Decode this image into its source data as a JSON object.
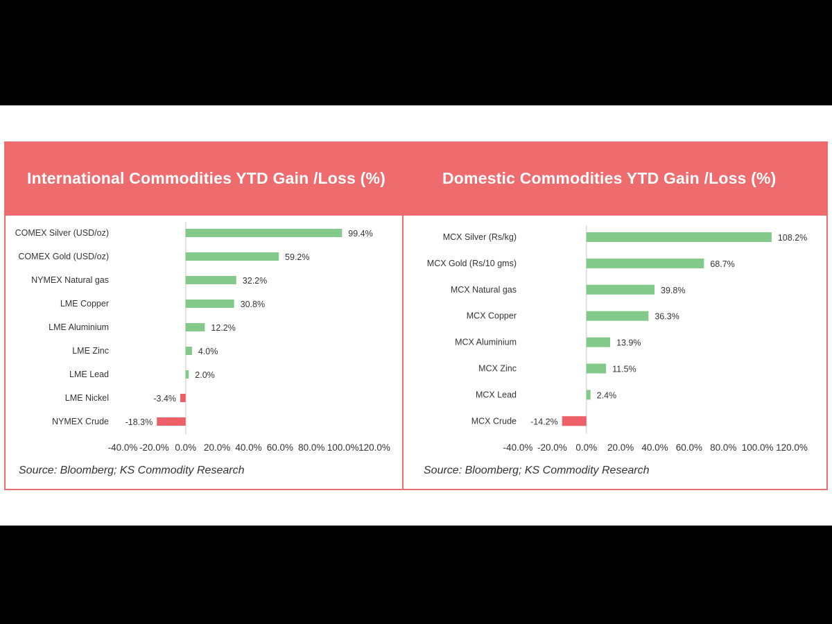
{
  "colors": {
    "header": "#ee6b6e",
    "positive": "#82c98a",
    "negative": "#ee6068"
  },
  "chart_data": [
    {
      "type": "bar",
      "orientation": "horizontal",
      "title": "International Commodities YTD Gain /Loss (%)",
      "categories": [
        "COMEX Silver (USD/oz)",
        "COMEX Gold (USD/oz)",
        "NYMEX Natural gas",
        "LME Copper",
        "LME Aluminium",
        "LME Zinc",
        "LME Lead",
        "LME Nickel",
        "NYMEX Crude"
      ],
      "values": [
        99.4,
        59.2,
        32.2,
        30.8,
        12.2,
        4.0,
        2.0,
        -3.4,
        -18.3
      ],
      "data_labels": [
        "99.4%",
        "59.2%",
        "32.2%",
        "30.8%",
        "12.2%",
        "4.0%",
        "2.0%",
        "-3.4%",
        "-18.3%"
      ],
      "xlim": [
        -40,
        120
      ],
      "xticks": [
        "-40.0%",
        "-20.0%",
        "0.0%",
        "20.0%",
        "40.0%",
        "60.0%",
        "80.0%",
        "100.0%",
        "120.0%"
      ],
      "grid": false,
      "source": "Source: Bloomberg; KS Commodity Research"
    },
    {
      "type": "bar",
      "orientation": "horizontal",
      "title": "Domestic Commodities YTD Gain /Loss (%)",
      "categories": [
        "MCX Silver (Rs/kg)",
        "MCX Gold (Rs/10 gms)",
        "MCX Natural gas",
        "MCX Copper",
        "MCX Aluminium",
        "MCX Zinc",
        "MCX Lead",
        "MCX Crude"
      ],
      "values": [
        108.2,
        68.7,
        39.8,
        36.3,
        13.9,
        11.5,
        2.4,
        -14.2
      ],
      "data_labels": [
        "108.2%",
        "68.7%",
        "39.8%",
        "36.3%",
        "13.9%",
        "11.5%",
        "2.4%",
        "-14.2%"
      ],
      "xlim": [
        -40,
        120
      ],
      "xticks": [
        "-40.0%",
        "-20.0%",
        "0.0%",
        "20.0%",
        "40.0%",
        "60.0%",
        "80.0%",
        "100.0%",
        "120.0%"
      ],
      "grid": false,
      "source": "Source: Bloomberg; KS Commodity Research"
    }
  ]
}
